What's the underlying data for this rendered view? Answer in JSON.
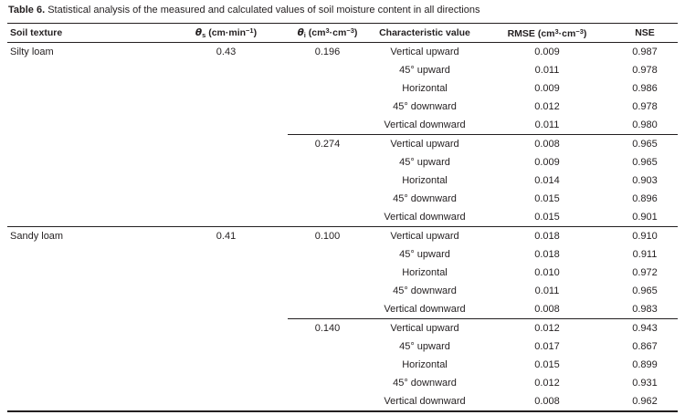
{
  "caption": {
    "label": "Table 6.",
    "text": "Statistical analysis of the measured and calculated values of soil moisture content in all directions"
  },
  "header": {
    "soil_texture": "Soil texture",
    "theta_s": {
      "symbol": "θ",
      "subscript": "s",
      "units_open": " (cm·min",
      "exponent": "−1",
      "units_close": ")"
    },
    "theta_i": {
      "symbol": "θ",
      "subscript": "i",
      "units_open": " (cm",
      "exponent_a": "3",
      "units_mid": "·cm",
      "exponent_b": "−3",
      "units_close": ")"
    },
    "characteristic": "Characteristic value",
    "rmse": {
      "label": "RMSE",
      "units_open": " (cm",
      "exponent_a": "3",
      "units_mid": "·cm",
      "exponent_b": "−3",
      "units_close": ")"
    },
    "nse": "NSE"
  },
  "groups": [
    {
      "soil_texture": "Silty loam",
      "theta_s": "0.43",
      "subgroups": [
        {
          "theta_i": "0.196",
          "rows": [
            {
              "direction": "Vertical upward",
              "rmse": "0.009",
              "nse": "0.987"
            },
            {
              "direction": "45° upward",
              "rmse": "0.011",
              "nse": "0.978"
            },
            {
              "direction": "Horizontal",
              "rmse": "0.009",
              "nse": "0.986"
            },
            {
              "direction": "45° downward",
              "rmse": "0.012",
              "nse": "0.978"
            },
            {
              "direction": "Vertical downward",
              "rmse": "0.011",
              "nse": "0.980"
            }
          ]
        },
        {
          "theta_i": "0.274",
          "rows": [
            {
              "direction": "Vertical upward",
              "rmse": "0.008",
              "nse": "0.965"
            },
            {
              "direction": "45° upward",
              "rmse": "0.009",
              "nse": "0.965"
            },
            {
              "direction": "Horizontal",
              "rmse": "0.014",
              "nse": "0.903"
            },
            {
              "direction": "45° downward",
              "rmse": "0.015",
              "nse": "0.896"
            },
            {
              "direction": "Vertical downward",
              "rmse": "0.015",
              "nse": "0.901"
            }
          ]
        }
      ]
    },
    {
      "soil_texture": "Sandy loam",
      "theta_s": "0.41",
      "subgroups": [
        {
          "theta_i": "0.100",
          "rows": [
            {
              "direction": "Vertical upward",
              "rmse": "0.018",
              "nse": "0.910"
            },
            {
              "direction": "45° upward",
              "rmse": "0.018",
              "nse": "0.911"
            },
            {
              "direction": "Horizontal",
              "rmse": "0.010",
              "nse": "0.972"
            },
            {
              "direction": "45° downward",
              "rmse": "0.011",
              "nse": "0.965"
            },
            {
              "direction": "Vertical downward",
              "rmse": "0.008",
              "nse": "0.983"
            }
          ]
        },
        {
          "theta_i": "0.140",
          "rows": [
            {
              "direction": "Vertical upward",
              "rmse": "0.012",
              "nse": "0.943"
            },
            {
              "direction": "45° upward",
              "rmse": "0.017",
              "nse": "0.867"
            },
            {
              "direction": "Horizontal",
              "rmse": "0.015",
              "nse": "0.899"
            },
            {
              "direction": "45° downward",
              "rmse": "0.012",
              "nse": "0.931"
            },
            {
              "direction": "Vertical downward",
              "rmse": "0.008",
              "nse": "0.962"
            }
          ]
        }
      ]
    }
  ]
}
